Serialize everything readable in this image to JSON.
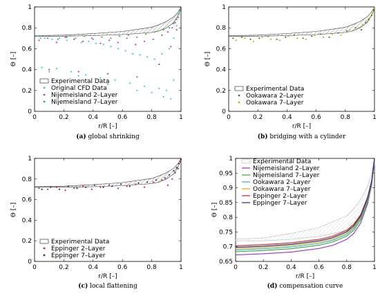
{
  "chart_data": [
    {
      "panel": "(a)",
      "caption": "global shrinking",
      "type": "scatter",
      "xlabel": "r/R [–]",
      "ylabel": "Θ [–]",
      "xlim": [
        0,
        1
      ],
      "ylim": [
        0,
        1
      ],
      "xticks": [
        "0",
        "0.2",
        "0.4",
        "0.6",
        "0.8",
        "1"
      ],
      "yticks": [
        "0",
        "0.2",
        "0.4",
        "0.6",
        "0.8",
        "1"
      ],
      "legend_position": "bottom-left",
      "experimental_band": {
        "name": "Experimental Data",
        "x": [
          0,
          0.2,
          0.4,
          0.6,
          0.8,
          0.85,
          0.9,
          0.95,
          0.98,
          1.0
        ],
        "upper": [
          0.725,
          0.73,
          0.745,
          0.765,
          0.805,
          0.83,
          0.86,
          0.905,
          0.95,
          1.0
        ],
        "lower": [
          0.72,
          0.72,
          0.725,
          0.735,
          0.755,
          0.77,
          0.8,
          0.85,
          0.92,
          0.98
        ]
      },
      "series": [
        {
          "name": "Original CFD Data",
          "color": "#33ccee",
          "marker": "dot",
          "x": [
            0.02,
            0.07,
            0.12,
            0.17,
            0.22,
            0.27,
            0.32,
            0.37,
            0.42,
            0.47,
            0.52,
            0.57,
            0.62,
            0.67,
            0.72,
            0.77,
            0.82,
            0.87,
            0.92,
            0.95,
            0.97,
            0.99,
            0.05,
            0.15,
            0.25,
            0.35,
            0.45,
            0.55,
            0.65,
            0.75,
            0.85,
            0.9,
            0.95,
            0.1,
            0.3,
            0.5,
            0.7,
            0.8,
            0.88,
            0.93
          ],
          "y": [
            0.72,
            0.7,
            0.69,
            0.7,
            0.68,
            0.69,
            0.66,
            0.67,
            0.65,
            0.64,
            0.62,
            0.6,
            0.58,
            0.55,
            0.54,
            0.52,
            0.5,
            0.55,
            0.6,
            0.7,
            0.82,
            0.95,
            0.42,
            0.41,
            0.38,
            0.35,
            0.32,
            0.3,
            0.27,
            0.24,
            0.22,
            0.2,
            0.3,
            0.38,
            0.34,
            0.26,
            0.2,
            0.18,
            0.14,
            0.12
          ]
        },
        {
          "name": "Nijemeisland 2–Layer",
          "color": "#cc33cc",
          "marker": "dot",
          "x": [
            0.03,
            0.09,
            0.15,
            0.21,
            0.27,
            0.33,
            0.39,
            0.45,
            0.51,
            0.57,
            0.63,
            0.69,
            0.75,
            0.81,
            0.87,
            0.91,
            0.94,
            0.96,
            0.98,
            0.99,
            0.1,
            0.3,
            0.5,
            0.7,
            0.85,
            0.93,
            0.97
          ],
          "y": [
            0.68,
            0.7,
            0.66,
            0.71,
            0.69,
            0.67,
            0.7,
            0.65,
            0.68,
            0.66,
            0.7,
            0.64,
            0.67,
            0.69,
            0.73,
            0.76,
            0.8,
            0.85,
            0.9,
            0.97,
            0.4,
            0.38,
            0.36,
            0.33,
            0.45,
            0.62,
            0.78
          ]
        },
        {
          "name": "Nijemeisland 7–Layer",
          "color": "#33bb33",
          "marker": "dot",
          "x": [
            0.04,
            0.1,
            0.16,
            0.22,
            0.28,
            0.34,
            0.4,
            0.46,
            0.52,
            0.58,
            0.64,
            0.7,
            0.76,
            0.82,
            0.88,
            0.92,
            0.95,
            0.97,
            0.985,
            1.0
          ],
          "y": [
            0.7,
            0.72,
            0.69,
            0.71,
            0.7,
            0.72,
            0.69,
            0.71,
            0.7,
            0.72,
            0.73,
            0.71,
            0.74,
            0.76,
            0.78,
            0.8,
            0.84,
            0.88,
            0.93,
            0.98
          ]
        }
      ]
    },
    {
      "panel": "(b)",
      "caption": "bridging with a cylinder",
      "type": "scatter",
      "xlabel": "r/R [–]",
      "ylabel": "Θ [–]",
      "xlim": [
        0,
        1
      ],
      "ylim": [
        0,
        1
      ],
      "xticks": [
        "0",
        "0.2",
        "0.4",
        "0.6",
        "0.8",
        "1"
      ],
      "yticks": [
        "0",
        "0.2",
        "0.4",
        "0.6",
        "0.8",
        "1"
      ],
      "legend_position": "bottom-left",
      "experimental_band": {
        "name": "Experimental Data",
        "x": [
          0,
          0.2,
          0.4,
          0.6,
          0.8,
          0.85,
          0.9,
          0.95,
          0.98,
          1.0
        ],
        "upper": [
          0.725,
          0.73,
          0.745,
          0.765,
          0.805,
          0.83,
          0.86,
          0.905,
          0.95,
          1.0
        ],
        "lower": [
          0.72,
          0.72,
          0.725,
          0.735,
          0.755,
          0.77,
          0.8,
          0.85,
          0.92,
          0.98
        ]
      },
      "series": [
        {
          "name": "Ookawara 2–Layer",
          "color": "#228833",
          "marker": "dot",
          "x": [
            0.03,
            0.09,
            0.15,
            0.21,
            0.27,
            0.33,
            0.39,
            0.45,
            0.51,
            0.57,
            0.63,
            0.69,
            0.75,
            0.81,
            0.87,
            0.91,
            0.94,
            0.96,
            0.98,
            0.995
          ],
          "y": [
            0.7,
            0.71,
            0.69,
            0.7,
            0.72,
            0.69,
            0.71,
            0.73,
            0.7,
            0.72,
            0.74,
            0.71,
            0.75,
            0.77,
            0.8,
            0.78,
            0.85,
            0.88,
            0.92,
            0.97
          ]
        },
        {
          "name": "Ookawara 7–Layer",
          "color": "#e0a800",
          "marker": "dot",
          "x": [
            0.05,
            0.11,
            0.17,
            0.23,
            0.29,
            0.35,
            0.41,
            0.47,
            0.53,
            0.59,
            0.65,
            0.71,
            0.77,
            0.83,
            0.89,
            0.92,
            0.95,
            0.97,
            0.985,
            1.0
          ],
          "y": [
            0.68,
            0.7,
            0.67,
            0.71,
            0.69,
            0.68,
            0.72,
            0.7,
            0.69,
            0.73,
            0.71,
            0.74,
            0.73,
            0.78,
            0.8,
            0.83,
            0.86,
            0.9,
            0.94,
            0.99
          ]
        }
      ]
    },
    {
      "panel": "(c)",
      "caption": "local flattening",
      "type": "scatter",
      "xlabel": "r/R [–]",
      "ylabel": "Θ [–]",
      "xlim": [
        0,
        1
      ],
      "ylim": [
        0,
        1
      ],
      "xticks": [
        "0",
        "0.2",
        "0.4",
        "0.6",
        "0.8",
        "1"
      ],
      "yticks": [
        "0",
        "0.2",
        "0.4",
        "0.6",
        "0.8",
        "1"
      ],
      "legend_position": "bottom-left",
      "experimental_band": {
        "name": "Experimental Data",
        "x": [
          0,
          0.2,
          0.4,
          0.6,
          0.8,
          0.85,
          0.9,
          0.95,
          0.98,
          1.0
        ],
        "upper": [
          0.725,
          0.73,
          0.745,
          0.765,
          0.805,
          0.83,
          0.86,
          0.905,
          0.95,
          1.0
        ],
        "lower": [
          0.72,
          0.72,
          0.725,
          0.735,
          0.755,
          0.77,
          0.8,
          0.85,
          0.92,
          0.98
        ]
      },
      "series": [
        {
          "name": "Eppinger 2–Layer",
          "color": "#dd2222",
          "marker": "dot",
          "x": [
            0.03,
            0.09,
            0.15,
            0.21,
            0.27,
            0.33,
            0.39,
            0.45,
            0.51,
            0.57,
            0.63,
            0.69,
            0.75,
            0.81,
            0.87,
            0.91,
            0.94,
            0.96,
            0.98,
            0.995
          ],
          "y": [
            0.71,
            0.7,
            0.72,
            0.69,
            0.71,
            0.73,
            0.7,
            0.72,
            0.74,
            0.71,
            0.73,
            0.75,
            0.72,
            0.77,
            0.79,
            0.74,
            0.8,
            0.86,
            0.9,
            0.97
          ]
        },
        {
          "name": "Eppinger 7–Layer",
          "color": "#222288",
          "marker": "dot",
          "x": [
            0.05,
            0.11,
            0.17,
            0.23,
            0.29,
            0.35,
            0.41,
            0.47,
            0.53,
            0.59,
            0.65,
            0.71,
            0.77,
            0.83,
            0.89,
            0.92,
            0.95,
            0.97,
            0.985,
            1.0
          ],
          "y": [
            0.7,
            0.72,
            0.7,
            0.73,
            0.71,
            0.72,
            0.74,
            0.72,
            0.73,
            0.75,
            0.73,
            0.76,
            0.77,
            0.79,
            0.81,
            0.84,
            0.88,
            0.91,
            0.95,
            0.99
          ]
        }
      ]
    },
    {
      "panel": "(d)",
      "caption": "compensation curve",
      "type": "line",
      "xlabel": "r/R [–]",
      "ylabel": "Θ [–]",
      "xlim": [
        0,
        1
      ],
      "ylim": [
        0.65,
        1
      ],
      "xticks": [
        "0",
        "0.2",
        "0.4",
        "0.6",
        "0.8",
        "1"
      ],
      "yticks": [
        "0.65",
        "0.7",
        "0.75",
        "0.8",
        "0.85",
        "0.9",
        "0.95",
        "1"
      ],
      "legend_position": "top-left",
      "experimental_band": {
        "name": "Experimental Data",
        "x": [
          0,
          0.2,
          0.4,
          0.6,
          0.8,
          0.85,
          0.9,
          0.95,
          0.98,
          1.0
        ],
        "upper": [
          0.725,
          0.73,
          0.745,
          0.765,
          0.805,
          0.83,
          0.86,
          0.905,
          0.95,
          1.0
        ],
        "lower": [
          0.72,
          0.72,
          0.725,
          0.735,
          0.755,
          0.77,
          0.8,
          0.85,
          0.92,
          0.98
        ]
      },
      "series": [
        {
          "name": "Nijemeisland 2–Layer",
          "color": "#9933cc",
          "x": [
            0,
            0.2,
            0.4,
            0.6,
            0.7,
            0.8,
            0.85,
            0.9,
            0.95,
            0.98,
            1.0
          ],
          "y": [
            0.672,
            0.676,
            0.682,
            0.694,
            0.705,
            0.725,
            0.745,
            0.78,
            0.845,
            0.91,
            1.0
          ]
        },
        {
          "name": "Nijemeisland 7–Layer",
          "color": "#33aa33",
          "x": [
            0,
            0.2,
            0.4,
            0.6,
            0.7,
            0.8,
            0.85,
            0.9,
            0.95,
            0.98,
            1.0
          ],
          "y": [
            0.683,
            0.687,
            0.693,
            0.705,
            0.716,
            0.736,
            0.756,
            0.79,
            0.853,
            0.915,
            1.0
          ]
        },
        {
          "name": "Ookawara 2–Layer",
          "color": "#33aacc",
          "x": [
            0,
            0.2,
            0.4,
            0.6,
            0.7,
            0.8,
            0.85,
            0.9,
            0.95,
            0.98,
            1.0
          ],
          "y": [
            0.689,
            0.693,
            0.699,
            0.711,
            0.722,
            0.742,
            0.762,
            0.796,
            0.858,
            0.918,
            1.0
          ]
        },
        {
          "name": "Ookawara 7–Layer",
          "color": "#e0a800",
          "x": [
            0,
            0.2,
            0.4,
            0.6,
            0.7,
            0.8,
            0.85,
            0.9,
            0.95,
            0.98,
            1.0
          ],
          "y": [
            0.694,
            0.698,
            0.704,
            0.716,
            0.727,
            0.747,
            0.767,
            0.8,
            0.862,
            0.921,
            1.0
          ]
        },
        {
          "name": "Eppinger 2–Layer",
          "color": "#cc2222",
          "x": [
            0,
            0.2,
            0.4,
            0.6,
            0.7,
            0.8,
            0.85,
            0.9,
            0.95,
            0.98,
            1.0
          ],
          "y": [
            0.703,
            0.707,
            0.713,
            0.725,
            0.736,
            0.756,
            0.776,
            0.808,
            0.868,
            0.925,
            1.0
          ]
        },
        {
          "name": "Eppinger 7–Layer",
          "color": "#222288",
          "x": [
            0,
            0.2,
            0.4,
            0.6,
            0.7,
            0.8,
            0.85,
            0.9,
            0.95,
            0.98,
            1.0
          ],
          "y": [
            0.698,
            0.702,
            0.708,
            0.72,
            0.731,
            0.751,
            0.771,
            0.804,
            0.865,
            0.923,
            1.0
          ]
        }
      ]
    }
  ]
}
